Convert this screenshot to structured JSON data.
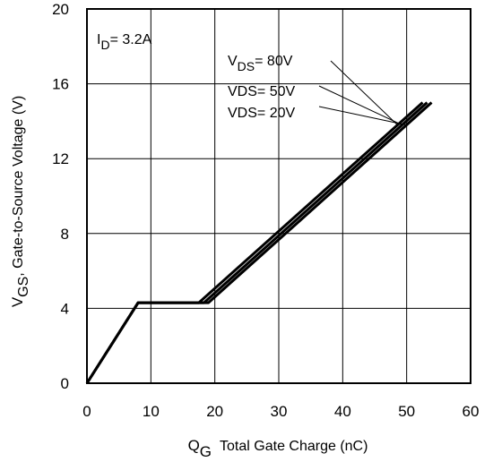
{
  "chart_data": {
    "type": "line",
    "title": "",
    "xlabel": {
      "main": "Q",
      "sub": "G",
      "rest": "Total Gate Charge (nC)"
    },
    "ylabel": {
      "main": "V",
      "sub": "GS",
      "rest": ", Gate-to-Source Voltage (V)"
    },
    "xlim": [
      0,
      60
    ],
    "ylim": [
      0,
      20
    ],
    "xticks": [
      0,
      10,
      20,
      30,
      40,
      50,
      60
    ],
    "yticks": [
      0,
      4,
      8,
      12,
      16,
      20
    ],
    "grid": true,
    "line_color": "#000000",
    "condition": {
      "main": "I",
      "sub": "D",
      "rest": "= 3.2A"
    },
    "series": [
      {
        "name": "VDS= 80V",
        "label": {
          "main": "V",
          "sub": "DS",
          "rest": "= 80V"
        },
        "x": [
          0,
          8,
          17.5,
          52.5
        ],
        "y": [
          0,
          4.3,
          4.3,
          15
        ]
      },
      {
        "name": "VDS= 50V",
        "label": {
          "main": "VDS= 50V",
          "sub": "",
          "rest": ""
        },
        "x": [
          0,
          8,
          18.3,
          53.2
        ],
        "y": [
          0,
          4.3,
          4.3,
          15
        ]
      },
      {
        "name": "VDS= 20V",
        "label": {
          "main": "VDS= 20V",
          "sub": "",
          "rest": ""
        },
        "x": [
          0,
          8,
          19.0,
          53.9
        ],
        "y": [
          0,
          4.3,
          4.3,
          15
        ]
      }
    ]
  }
}
